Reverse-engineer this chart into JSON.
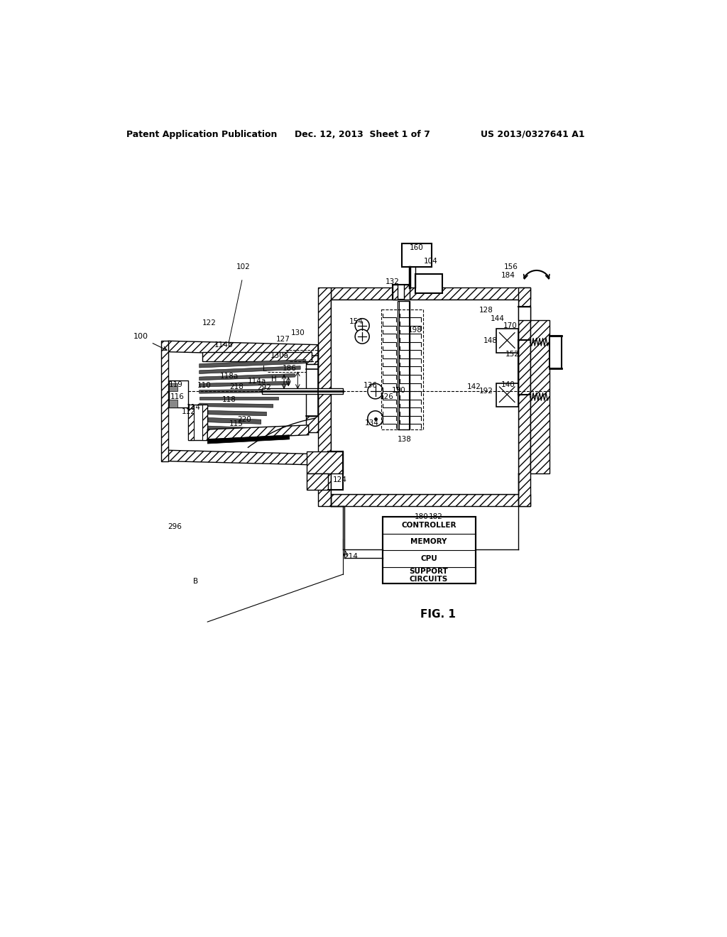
{
  "bg": "#ffffff",
  "header_left": "Patent Application Publication",
  "header_mid": "Dec. 12, 2013  Sheet 1 of 7",
  "header_right": "US 2013/0327641 A1",
  "fig_caption": "FIG. 1"
}
